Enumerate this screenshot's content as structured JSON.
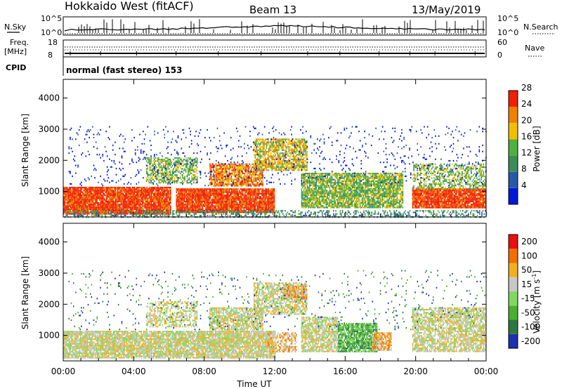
{
  "header": {
    "station": "Hokkaido West (fitACF)",
    "beam": "Beam 13",
    "date": "13/May/2019"
  },
  "top_panel": {
    "left_label": "N.Sky",
    "right_label": "N.Search",
    "left_ticks": [
      "10^5",
      "10^0"
    ],
    "right_ticks": [
      "10^5",
      "10^0"
    ]
  },
  "freq_panel": {
    "left_label_line1": "Freq.",
    "left_label_line2": "[MHz]",
    "right_label": "Nave",
    "left_ticks": [
      "18",
      "8"
    ],
    "right_ticks": [
      "60",
      "0"
    ]
  },
  "cpid": {
    "label": "CPID",
    "mode": "normal (fast stereo) 153"
  },
  "chart_data": [
    {
      "type": "heatmap",
      "name": "power",
      "ylabel": "Slant Range [km]",
      "ylim": [
        180,
        4600
      ],
      "yticks": [
        1000,
        2000,
        3000,
        4000
      ],
      "colorbar_label": "Power [dB]",
      "colorbar_ticks": [
        "4",
        "8",
        "12",
        "16",
        "20",
        "24",
        "28"
      ],
      "colors": [
        "#0018d8",
        "#2858a8",
        "#3c8c5a",
        "#50b040",
        "#f0c000",
        "#f08000",
        "#f02000"
      ],
      "regions": [
        {
          "t0": 0.0,
          "t1": 6.1,
          "r0": 300,
          "r1": 1150,
          "level": 6,
          "density": 0.95
        },
        {
          "t0": 6.4,
          "t1": 12.0,
          "r0": 350,
          "r1": 1100,
          "level": 6,
          "density": 0.95
        },
        {
          "t0": 8.3,
          "t1": 11.3,
          "r0": 1200,
          "r1": 1900,
          "level": 5,
          "density": 0.8
        },
        {
          "t0": 4.7,
          "t1": 7.6,
          "r0": 1300,
          "r1": 2100,
          "level": 3,
          "density": 0.6
        },
        {
          "t0": 10.8,
          "t1": 13.8,
          "r0": 1700,
          "r1": 2700,
          "level": 4,
          "density": 0.75
        },
        {
          "t0": 13.5,
          "t1": 19.3,
          "r0": 500,
          "r1": 1600,
          "level": 3,
          "density": 0.85
        },
        {
          "t0": 19.8,
          "t1": 24.0,
          "r0": 500,
          "r1": 1100,
          "level": 6,
          "density": 0.95
        },
        {
          "t0": 19.8,
          "t1": 24.0,
          "r0": 1100,
          "r1": 1900,
          "level": 3,
          "density": 0.5
        },
        {
          "t0": 0.0,
          "t1": 24.0,
          "r0": 180,
          "r1": 400,
          "level": 2,
          "density": 0.4
        },
        {
          "t0": 0.3,
          "t1": 24.0,
          "r0": 1200,
          "r1": 3100,
          "level": 0,
          "density": 0.06
        }
      ]
    },
    {
      "type": "heatmap",
      "name": "velocity",
      "ylabel": "Slant Range [km]",
      "xlabel": "Time UT",
      "xlim": [
        0,
        24
      ],
      "xticks": [
        "00:00",
        "04:00",
        "08:00",
        "12:00",
        "16:00",
        "20:00",
        "00:00"
      ],
      "ylim": [
        180,
        4600
      ],
      "yticks": [
        1000,
        2000,
        3000,
        4000
      ],
      "colorbar_label": "Velocity [m s-1]",
      "colorbar_ticks": [
        "200",
        "100",
        "50",
        "15",
        "-15",
        "-50",
        "-100",
        "-200"
      ],
      "colors": [
        "#1c30b0",
        "#2c7840",
        "#48b030",
        "#80d860",
        "#c8c8c8",
        "#f0b020",
        "#f07000",
        "#e81010"
      ],
      "regions": [
        {
          "t0": 0.0,
          "t1": 12.0,
          "r0": 300,
          "r1": 1150,
          "level": 4,
          "density": 0.9
        },
        {
          "t0": 8.3,
          "t1": 11.3,
          "r0": 1200,
          "r1": 1900,
          "level": 4,
          "density": 0.8
        },
        {
          "t0": 4.7,
          "t1": 7.6,
          "r0": 1300,
          "r1": 2100,
          "level": 4,
          "density": 0.55
        },
        {
          "t0": 10.8,
          "t1": 13.8,
          "r0": 1700,
          "r1": 2700,
          "level": 4,
          "density": 0.7
        },
        {
          "t0": 12.5,
          "t1": 13.8,
          "r0": 2200,
          "r1": 2600,
          "level": 5,
          "density": 0.8
        },
        {
          "t0": 13.5,
          "t1": 15.6,
          "r0": 500,
          "r1": 1600,
          "level": 4,
          "density": 0.8
        },
        {
          "t0": 15.6,
          "t1": 17.8,
          "r0": 500,
          "r1": 1400,
          "level": 2,
          "density": 0.85
        },
        {
          "t0": 17.5,
          "t1": 18.6,
          "r0": 550,
          "r1": 1100,
          "level": 5,
          "density": 0.8
        },
        {
          "t0": 11.6,
          "t1": 13.2,
          "r0": 500,
          "r1": 1100,
          "level": 5,
          "density": 0.6
        },
        {
          "t0": 19.8,
          "t1": 24.0,
          "r0": 500,
          "r1": 1900,
          "level": 4,
          "density": 0.75
        },
        {
          "t0": 0.3,
          "t1": 24.0,
          "r0": 1200,
          "r1": 3100,
          "level": 1,
          "density": 0.04
        }
      ]
    }
  ]
}
